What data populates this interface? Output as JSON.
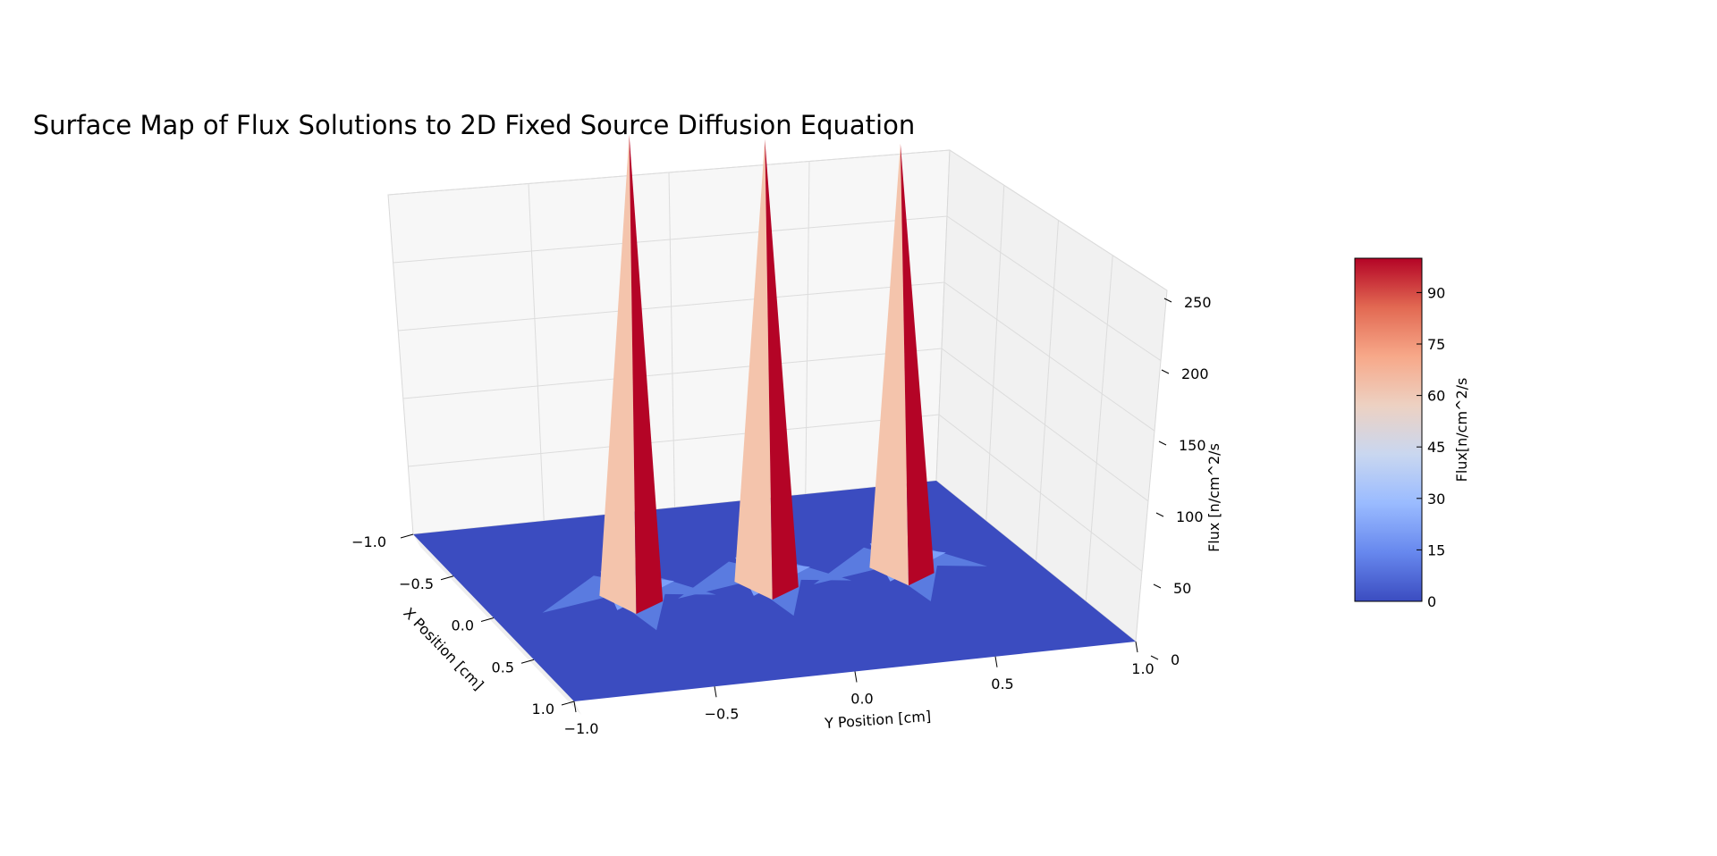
{
  "chart_data": {
    "type": "surface3d",
    "title": "Surface Map of Flux Solutions to 2D Fixed Source Diffusion Equation",
    "xlabel": "X Position [cm]",
    "ylabel": "Y Position [cm]",
    "zlabel": "Flux [n/cm^2/s",
    "xlim": [
      -1.0,
      1.0
    ],
    "ylim": [
      -1.0,
      1.0
    ],
    "zlim": [
      0,
      250
    ],
    "x_ticks": [
      "−1.0",
      "−0.5",
      "0.0",
      "0.5",
      "1.0"
    ],
    "y_ticks": [
      "−1.0",
      "−0.5",
      "0.0",
      "0.5",
      "1.0"
    ],
    "z_ticks": [
      "0",
      "50",
      "100",
      "150",
      "200",
      "250"
    ],
    "grid": true,
    "colormap": "coolwarm",
    "colormap_colors": [
      "#3b4cc0",
      "#6788ee",
      "#9abbff",
      "#c9d7f0",
      "#edd1c2",
      "#f7a889",
      "#e26952",
      "#b40426"
    ],
    "peaks": [
      {
        "x": 0.0,
        "y": -0.5,
        "z": 250
      },
      {
        "x": 0.0,
        "y": 0.0,
        "z": 240
      },
      {
        "x": 0.0,
        "y": 0.5,
        "z": 230
      }
    ],
    "colorbar": {
      "label": "Flux[n/cm^2/s",
      "ticks": [
        "0",
        "15",
        "30",
        "45",
        "60",
        "75",
        "90"
      ],
      "range": [
        0,
        100
      ]
    }
  }
}
